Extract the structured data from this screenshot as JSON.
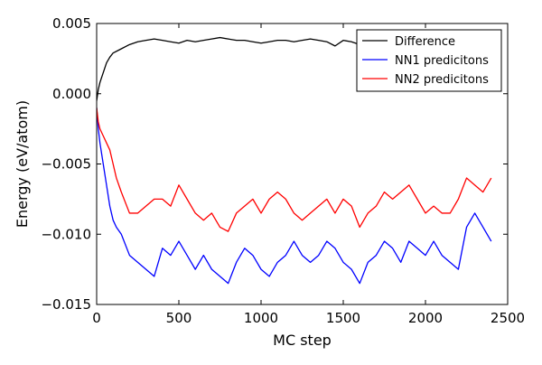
{
  "chart_data": {
    "type": "line",
    "title": "",
    "xlabel": "MC step",
    "ylabel": "Energy (eV/atom)",
    "xlim": [
      0,
      2500
    ],
    "ylim": [
      -0.015,
      0.005
    ],
    "xticks": [
      0,
      500,
      1000,
      1500,
      2000,
      2500
    ],
    "xtick_labels": [
      "0",
      "500",
      "1000",
      "1500",
      "2000",
      "2500"
    ],
    "yticks": [
      -0.015,
      -0.01,
      -0.005,
      0.0,
      0.005
    ],
    "ytick_labels": [
      "−0.015",
      "−0.010",
      "−0.005",
      "0.000",
      "0.005"
    ],
    "grid": false,
    "legend_position": "top-right",
    "series": [
      {
        "name": "Difference",
        "color": "#000000",
        "x": [
          0,
          10,
          20,
          40,
          60,
          80,
          100,
          150,
          200,
          250,
          300,
          350,
          400,
          450,
          500,
          550,
          600,
          650,
          700,
          750,
          800,
          850,
          900,
          950,
          1000,
          1050,
          1100,
          1150,
          1200,
          1250,
          1300,
          1350,
          1400,
          1450,
          1500,
          1550,
          1600,
          1650,
          1700,
          1750,
          1800,
          1850,
          1900,
          1950,
          2000,
          2050,
          2100,
          2150,
          2200,
          2250,
          2300,
          2350,
          2400
        ],
        "y": [
          -0.0005,
          0.0003,
          0.0008,
          0.0015,
          0.0022,
          0.0026,
          0.0029,
          0.0032,
          0.0035,
          0.0037,
          0.0038,
          0.0039,
          0.0038,
          0.0037,
          0.0036,
          0.0038,
          0.0037,
          0.0038,
          0.0039,
          0.004,
          0.0039,
          0.0038,
          0.0038,
          0.0037,
          0.0036,
          0.0037,
          0.0038,
          0.0038,
          0.0037,
          0.0038,
          0.0039,
          0.0038,
          0.0037,
          0.0034,
          0.0038,
          0.0037,
          0.0035,
          0.0036,
          0.0037,
          0.0038,
          0.0039,
          0.0038,
          0.0037,
          0.0036,
          0.0037,
          0.0038,
          0.0037,
          0.0038,
          0.0039,
          0.0037,
          0.0036,
          0.0037,
          0.0038
        ]
      },
      {
        "name": "NN1 predicitons",
        "color": "#0000ff",
        "x": [
          0,
          10,
          20,
          40,
          60,
          80,
          100,
          120,
          150,
          200,
          250,
          300,
          350,
          400,
          450,
          500,
          550,
          600,
          650,
          700,
          750,
          800,
          850,
          900,
          950,
          1000,
          1050,
          1100,
          1150,
          1200,
          1250,
          1300,
          1350,
          1400,
          1450,
          1500,
          1550,
          1600,
          1650,
          1700,
          1750,
          1800,
          1850,
          1900,
          1950,
          2000,
          2050,
          2100,
          2150,
          2200,
          2250,
          2300,
          2350,
          2400
        ],
        "y": [
          -0.001,
          -0.0025,
          -0.0035,
          -0.005,
          -0.0065,
          -0.008,
          -0.009,
          -0.0095,
          -0.01,
          -0.0115,
          -0.012,
          -0.0125,
          -0.013,
          -0.011,
          -0.0115,
          -0.0105,
          -0.0115,
          -0.0125,
          -0.0115,
          -0.0125,
          -0.013,
          -0.0135,
          -0.012,
          -0.011,
          -0.0115,
          -0.0125,
          -0.013,
          -0.012,
          -0.0115,
          -0.0105,
          -0.0115,
          -0.012,
          -0.0115,
          -0.0105,
          -0.011,
          -0.012,
          -0.0125,
          -0.0135,
          -0.012,
          -0.0115,
          -0.0105,
          -0.011,
          -0.012,
          -0.0105,
          -0.011,
          -0.0115,
          -0.0105,
          -0.0115,
          -0.012,
          -0.0125,
          -0.0095,
          -0.0085,
          -0.0095,
          -0.0105
        ]
      },
      {
        "name": "NN2 predicitons",
        "color": "#ff0000",
        "x": [
          0,
          10,
          20,
          40,
          60,
          80,
          100,
          120,
          150,
          200,
          250,
          300,
          350,
          400,
          450,
          500,
          550,
          600,
          650,
          700,
          750,
          800,
          850,
          900,
          950,
          1000,
          1050,
          1100,
          1150,
          1200,
          1250,
          1300,
          1350,
          1400,
          1450,
          1500,
          1550,
          1600,
          1650,
          1700,
          1750,
          1800,
          1850,
          1900,
          1950,
          2000,
          2050,
          2100,
          2150,
          2200,
          2250,
          2300,
          2350,
          2400
        ],
        "y": [
          -0.001,
          -0.002,
          -0.0025,
          -0.003,
          -0.0035,
          -0.004,
          -0.005,
          -0.006,
          -0.007,
          -0.0085,
          -0.0085,
          -0.008,
          -0.0075,
          -0.0075,
          -0.008,
          -0.0065,
          -0.0075,
          -0.0085,
          -0.009,
          -0.0085,
          -0.0095,
          -0.0098,
          -0.0085,
          -0.008,
          -0.0075,
          -0.0085,
          -0.0075,
          -0.007,
          -0.0075,
          -0.0085,
          -0.009,
          -0.0085,
          -0.008,
          -0.0075,
          -0.0085,
          -0.0075,
          -0.008,
          -0.0095,
          -0.0085,
          -0.008,
          -0.007,
          -0.0075,
          -0.007,
          -0.0065,
          -0.0075,
          -0.0085,
          -0.008,
          -0.0085,
          -0.0085,
          -0.0075,
          -0.006,
          -0.0065,
          -0.007,
          -0.006
        ]
      }
    ]
  }
}
